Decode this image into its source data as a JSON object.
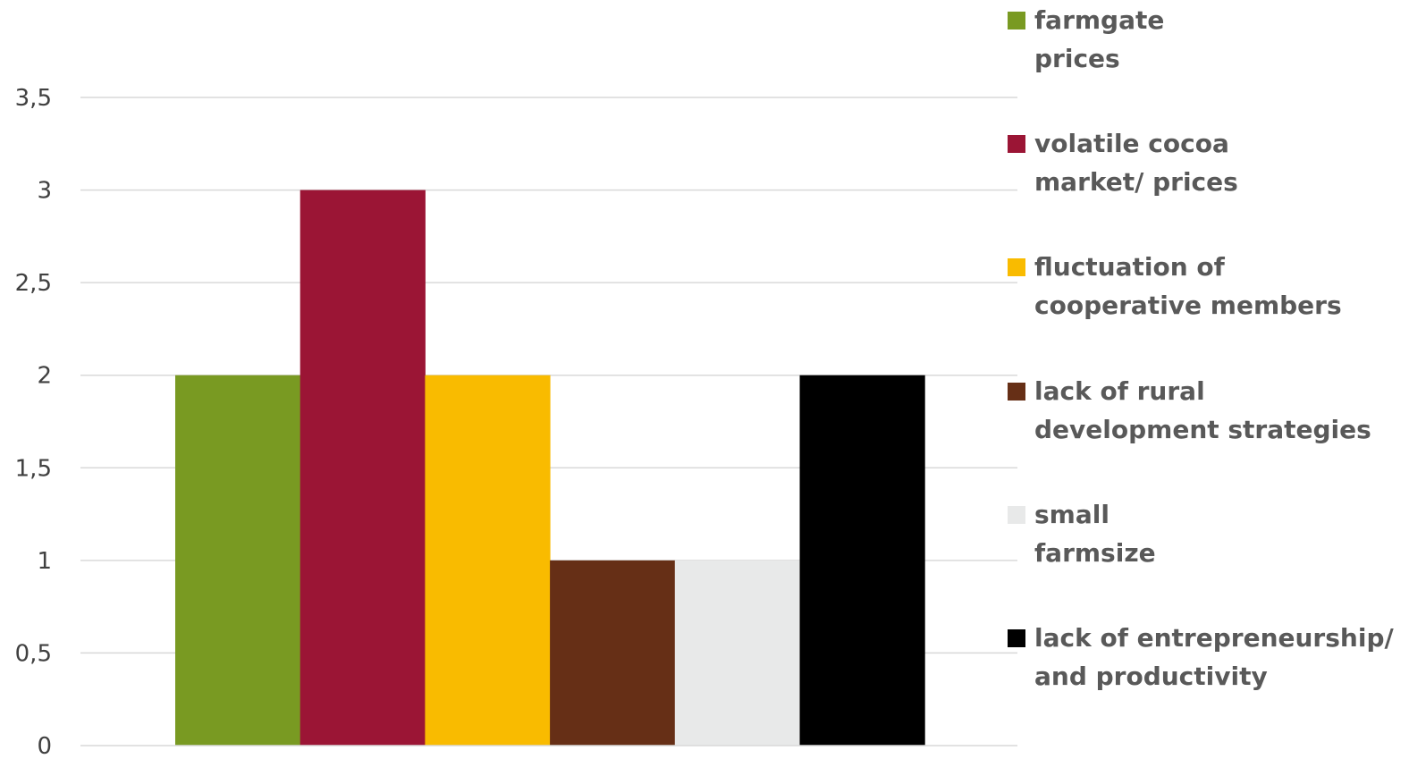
{
  "chart_data": {
    "type": "bar",
    "title": "",
    "xlabel": "",
    "ylabel": "",
    "ylim": [
      0,
      3.5
    ],
    "yticks": [
      "0",
      "0,5",
      "1",
      "1,5",
      "2",
      "2,5",
      "3",
      "3,5"
    ],
    "grid": true,
    "legend_position": "right",
    "series": [
      {
        "name": "farmgate prices",
        "label_lines": [
          "farmgate",
          "prices"
        ],
        "value": 2,
        "color": "#799a22"
      },
      {
        "name": "volatile cocoa market/ prices",
        "label_lines": [
          "volatile cocoa",
          "market/  prices"
        ],
        "value": 3,
        "color": "#9b1535"
      },
      {
        "name": "fluctuation of cooperative members",
        "label_lines": [
          "fluctuation of",
          "cooperative members"
        ],
        "value": 2,
        "color": "#f9bb00"
      },
      {
        "name": "lack of rural development strategies",
        "label_lines": [
          "lack of rural",
          "development strategies"
        ],
        "value": 1,
        "color": "#662f16"
      },
      {
        "name": "small farmsize",
        "label_lines": [
          "small",
          "farmsize"
        ],
        "value": 1,
        "color": "#e8e9e9"
      },
      {
        "name": "lack of entrepreneurship/ and productivity",
        "label_lines": [
          "lack of entrepreneurship/",
          "and productivity"
        ],
        "value": 2,
        "color": "#000000"
      }
    ]
  }
}
